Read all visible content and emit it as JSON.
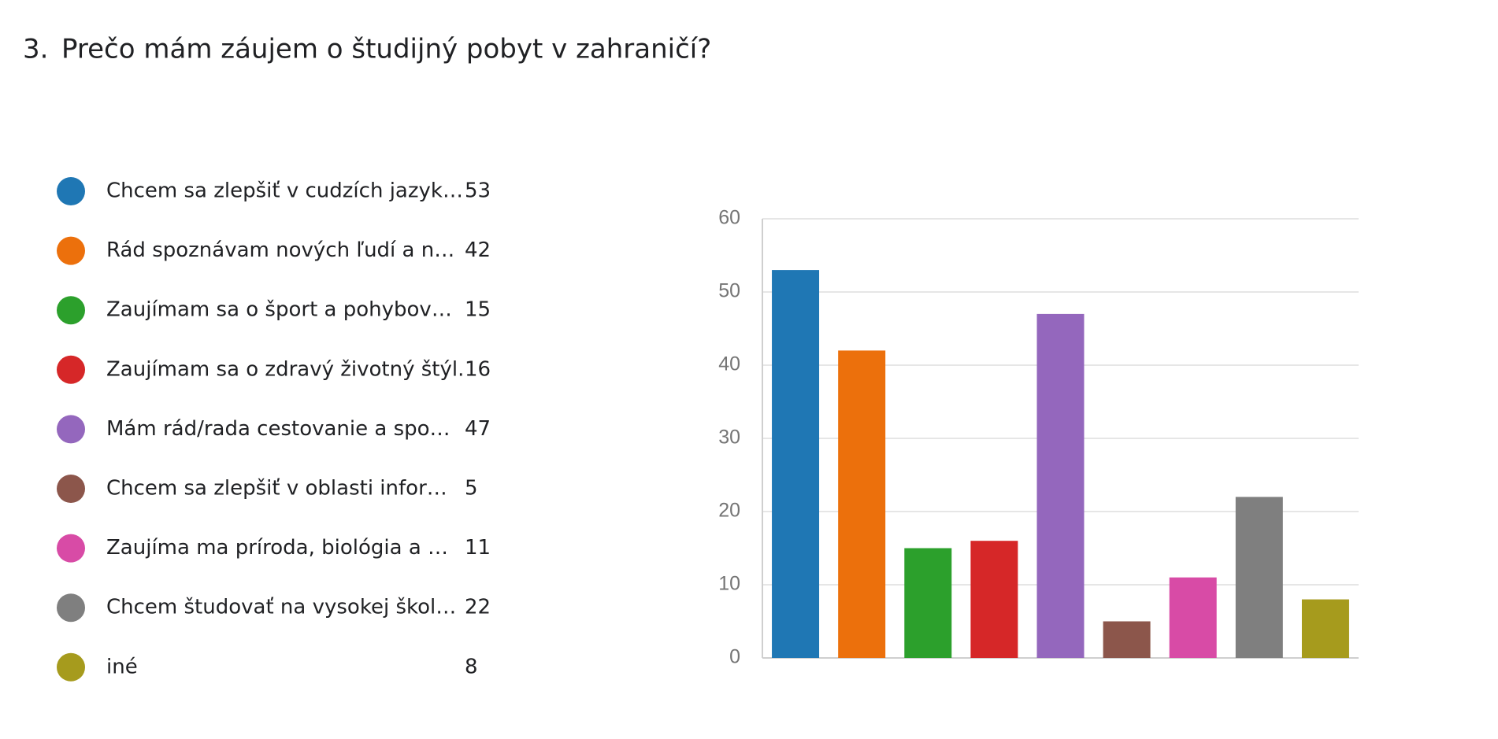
{
  "number": "3.",
  "chart_data": {
    "type": "bar",
    "title": "Prečo mám záujem o študijný pobyt v zahraničí?",
    "categories": [
      "Chcem sa zlepšiť v cudzích jazyk…",
      "Rád spoznávam nových ľudí a n…",
      "Zaujímam sa o šport a pohybov…",
      "Zaujímam sa o zdravý životný štýl.",
      "Mám rád/rada cestovanie a spo…",
      "Chcem sa zlepšiť v oblasti infor…",
      "Zaujíma ma príroda, biológia a …",
      "Chcem študovať na vysokej škol…",
      "iné"
    ],
    "values": [
      53,
      42,
      15,
      16,
      47,
      5,
      11,
      22,
      8
    ],
    "colors": [
      "#1f77b4",
      "#ec700c",
      "#2ca02c",
      "#d62728",
      "#9467bd",
      "#8c564b",
      "#d84ba6",
      "#7f7f7f",
      "#a69b1d"
    ],
    "ylim": [
      0,
      60
    ],
    "yticks": [
      0,
      10,
      20,
      30,
      40,
      50,
      60
    ],
    "grid": true
  }
}
